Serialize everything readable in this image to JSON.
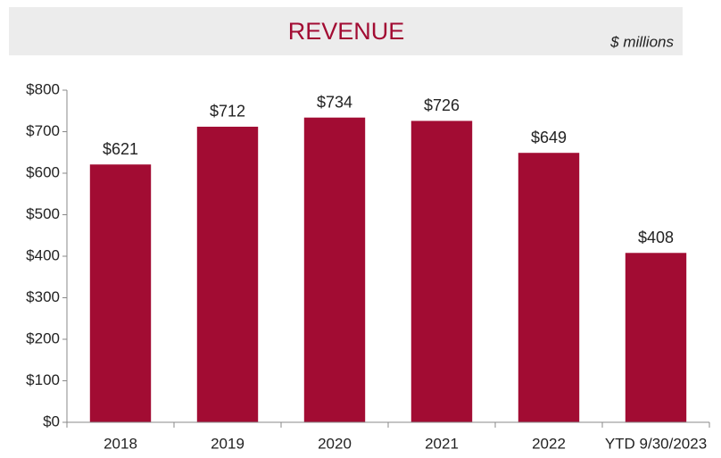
{
  "chart_data": {
    "type": "bar",
    "title": "REVENUE",
    "subtitle": "$ millions",
    "categories": [
      "2018",
      "2019",
      "2020",
      "2021",
      "2022",
      "YTD 9/30/2023"
    ],
    "values": [
      621,
      712,
      734,
      726,
      649,
      408
    ],
    "value_labels": [
      "$621",
      "$712",
      "$734",
      "$726",
      "$649",
      "$408"
    ],
    "color": "#a20c33",
    "ylim": [
      0,
      800
    ],
    "yticks": [
      {
        "value": 0,
        "label": "$0"
      },
      {
        "value": 100,
        "label": "$100"
      },
      {
        "value": 200,
        "label": "$200"
      },
      {
        "value": 300,
        "label": "$300"
      },
      {
        "value": 400,
        "label": "$400"
      },
      {
        "value": 500,
        "label": "$500"
      },
      {
        "value": 600,
        "label": "$600"
      },
      {
        "value": 700,
        "label": "$700"
      },
      {
        "value": 800,
        "label": "$800"
      }
    ],
    "grid": false
  }
}
